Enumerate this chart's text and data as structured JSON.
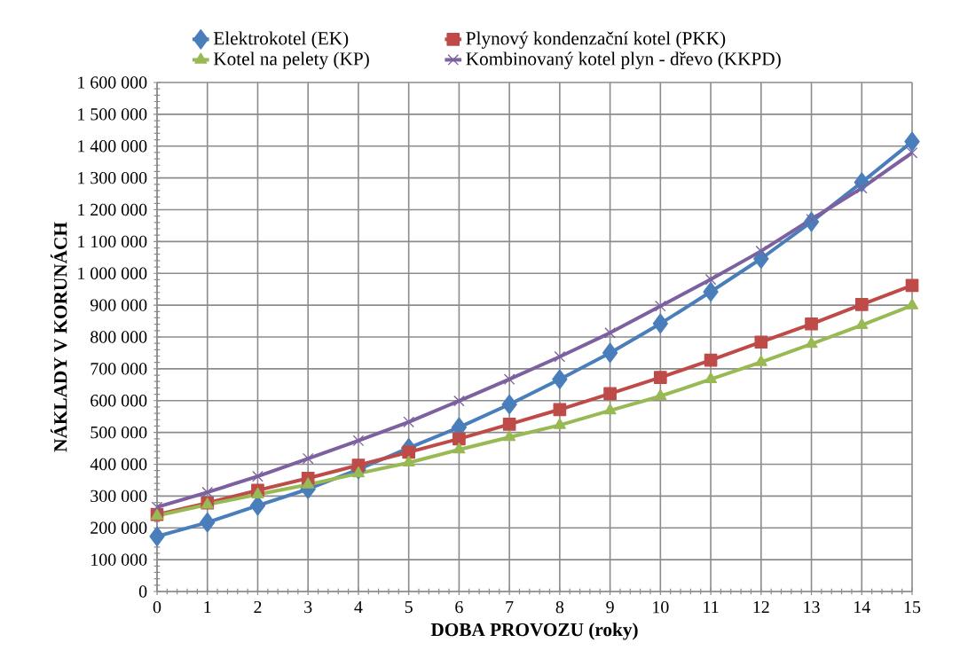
{
  "chart_data": {
    "type": "line",
    "xlabel": "DOBA PROVOZU (roky)",
    "ylabel": "NÁKLADY V KORUNÁCH",
    "x": [
      0,
      1,
      2,
      3,
      4,
      5,
      6,
      7,
      8,
      9,
      10,
      11,
      12,
      13,
      14,
      15
    ],
    "series": [
      {
        "name": "Elektrokotel (EK)",
        "color": "#4a7ebb",
        "marker": "diamond",
        "values": [
          173000,
          217000,
          270000,
          322000,
          384000,
          451000,
          516000,
          588000,
          667000,
          750000,
          842000,
          942000,
          1046000,
          1162000,
          1286000,
          1414000
        ]
      },
      {
        "name": "Plynový kondenzační kotel (PKK)",
        "color": "#be4b48",
        "marker": "square",
        "values": [
          242000,
          278000,
          318000,
          356000,
          397000,
          438000,
          480000,
          526000,
          572000,
          622000,
          673000,
          727000,
          784000,
          841000,
          902000,
          962000
        ]
      },
      {
        "name": "Kotel na pelety (KP)",
        "color": "#98b954",
        "marker": "triangle",
        "values": [
          238000,
          273000,
          305000,
          336000,
          371000,
          405000,
          446000,
          485000,
          523000,
          569000,
          614000,
          667000,
          721000,
          778000,
          837000,
          899000
        ]
      },
      {
        "name": "Kombinovaný kotel plyn - dřevo (KKPD)",
        "color": "#7d60a0",
        "marker": "cross",
        "values": [
          265000,
          312000,
          362000,
          418000,
          474000,
          533000,
          599000,
          667000,
          738000,
          813000,
          897000,
          981000,
          1070000,
          1170000,
          1268000,
          1379000
        ]
      }
    ],
    "xlim": [
      0,
      15
    ],
    "xticks": [
      0,
      1,
      2,
      3,
      4,
      5,
      6,
      7,
      8,
      9,
      10,
      11,
      12,
      13,
      14,
      15
    ],
    "ylim": [
      0,
      1600000
    ],
    "yticks": [
      0,
      {
        "value": 100000,
        "label": "100 000"
      },
      {
        "value": 200000,
        "label": "200 000"
      },
      {
        "value": 300000,
        "label": "300 000"
      },
      {
        "value": 400000,
        "label": "400 000"
      },
      {
        "value": 500000,
        "label": "500 000"
      },
      {
        "value": 600000,
        "label": "600 000"
      },
      {
        "value": 700000,
        "label": "700 000"
      },
      {
        "value": 800000,
        "label": "800 000"
      },
      {
        "value": 900000,
        "label": "900 000"
      },
      {
        "value": 1000000,
        "label": "1 000 000"
      },
      {
        "value": 1100000,
        "label": "1 100 000"
      },
      {
        "value": 1200000,
        "label": "1 200 000"
      },
      {
        "value": 1300000,
        "label": "1 300 000"
      },
      {
        "value": 1400000,
        "label": "1 400 000"
      },
      {
        "value": 1500000,
        "label": "1 500 000"
      },
      {
        "value": 1600000,
        "label": "1 600 000"
      }
    ],
    "grid": true,
    "legend": "top",
    "line_style": "solid"
  }
}
